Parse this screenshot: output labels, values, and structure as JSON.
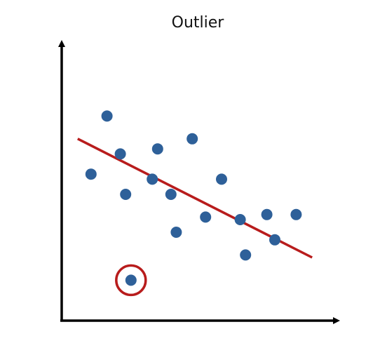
{
  "chart_data": {
    "type": "scatter",
    "title": "Outlier",
    "xlabel": "",
    "ylabel": "",
    "grid": false,
    "legend": "none",
    "xlim": [
      0,
      10
    ],
    "ylim": [
      0,
      10
    ],
    "series": [
      {
        "points": [
          {
            "x": 1.1,
            "y": 5.8
          },
          {
            "x": 1.7,
            "y": 8.1
          },
          {
            "x": 2.2,
            "y": 6.6
          },
          {
            "x": 2.4,
            "y": 5.0
          },
          {
            "x": 3.4,
            "y": 5.6
          },
          {
            "x": 3.6,
            "y": 6.8
          },
          {
            "x": 4.1,
            "y": 5.0
          },
          {
            "x": 4.3,
            "y": 3.5
          },
          {
            "x": 4.9,
            "y": 7.2
          },
          {
            "x": 5.4,
            "y": 4.1
          },
          {
            "x": 6.0,
            "y": 5.6
          },
          {
            "x": 6.7,
            "y": 4.0
          },
          {
            "x": 6.9,
            "y": 2.6
          },
          {
            "x": 7.7,
            "y": 4.2
          },
          {
            "x": 8.0,
            "y": 3.2
          },
          {
            "x": 8.8,
            "y": 4.2
          }
        ]
      }
    ],
    "outlier": {
      "x": 2.6,
      "y": 1.6
    },
    "trend_line": {
      "x1": 0.6,
      "y1": 7.2,
      "x2": 9.4,
      "y2": 2.5
    },
    "colors": {
      "points": "#2e6099",
      "trend_line": "#b81c1c",
      "outlier_circle": "#b81c1c",
      "axes": "#000000"
    }
  }
}
